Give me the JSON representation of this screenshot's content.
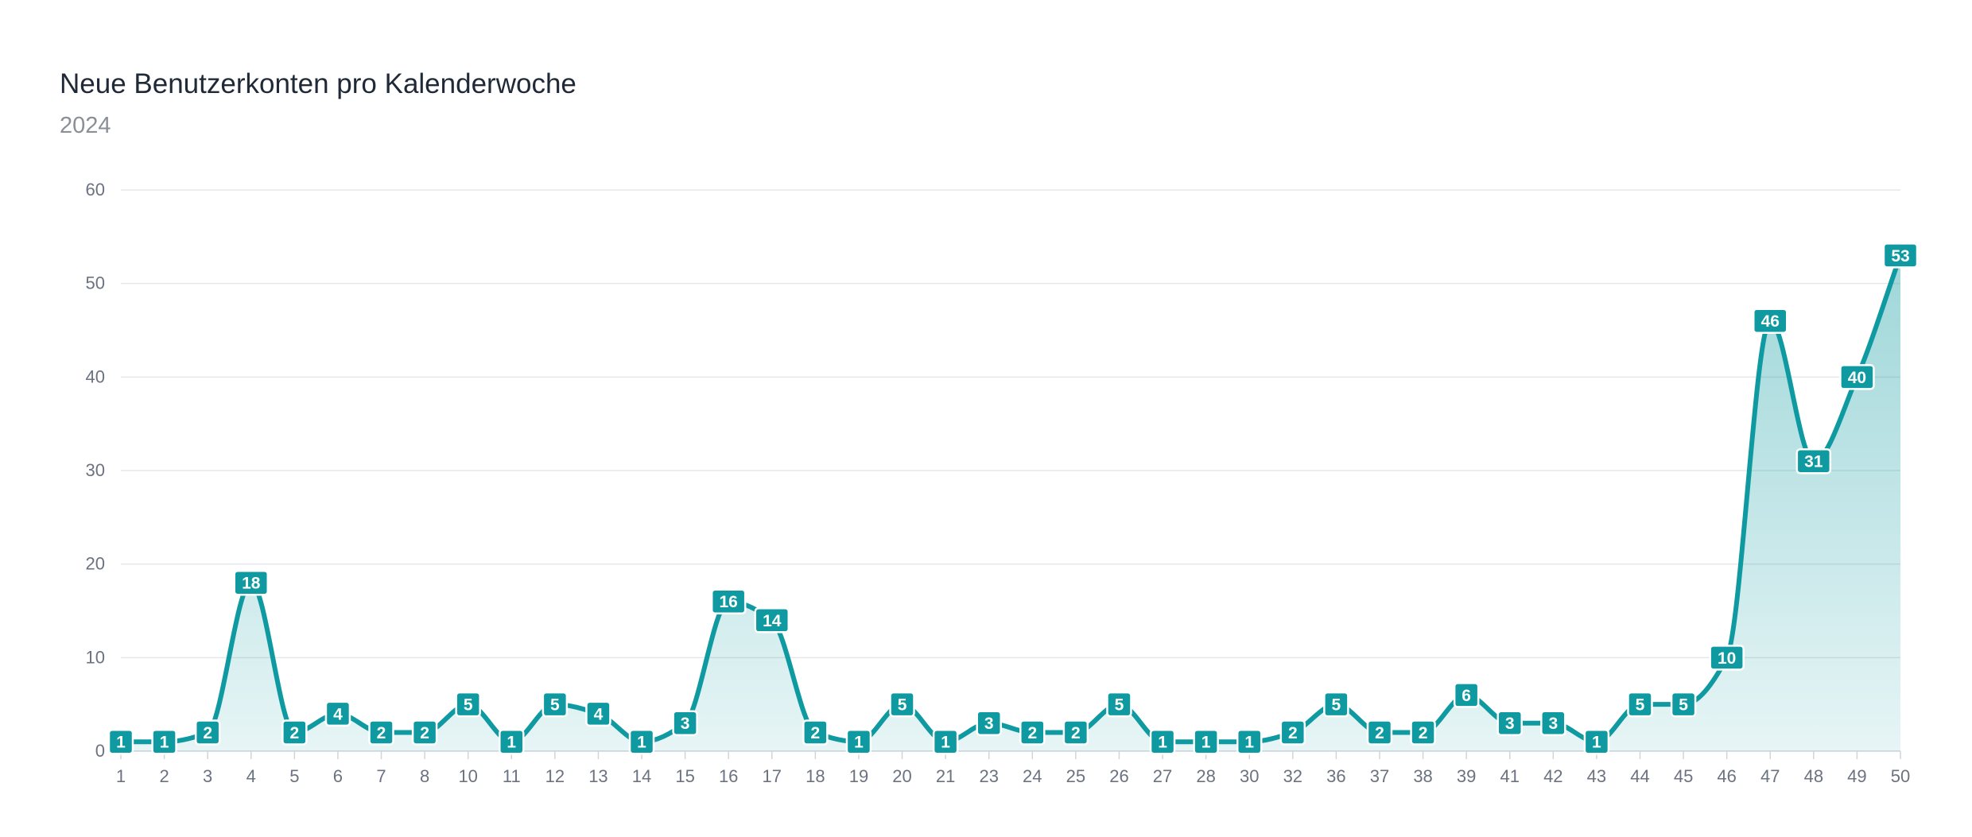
{
  "colors": {
    "line": "#0e9aa0",
    "area_top": "#0e9aa0",
    "grid": "#e5e7eb",
    "label_bg": "#0e9aa0",
    "label_text": "#ffffff"
  },
  "chart_data": {
    "type": "area",
    "title": "Neue Benutzerkonten pro Kalenderwoche",
    "subtitle": "2024",
    "xlabel": "",
    "ylabel": "",
    "ylim": [
      0,
      60
    ],
    "yticks": [
      0,
      10,
      20,
      30,
      40,
      50,
      60
    ],
    "grid": true,
    "legend": "none",
    "categories": [
      "1",
      "2",
      "3",
      "4",
      "5",
      "6",
      "7",
      "8",
      "10",
      "11",
      "12",
      "13",
      "14",
      "15",
      "16",
      "17",
      "18",
      "19",
      "20",
      "21",
      "23",
      "24",
      "25",
      "26",
      "27",
      "28",
      "30",
      "32",
      "36",
      "37",
      "38",
      "39",
      "41",
      "42",
      "43",
      "44",
      "45",
      "46",
      "47",
      "48",
      "49",
      "50"
    ],
    "series": [
      {
        "values": [
          1,
          1,
          2,
          18,
          2,
          4,
          2,
          2,
          5,
          1,
          5,
          4,
          1,
          3,
          16,
          14,
          2,
          1,
          5,
          1,
          3,
          2,
          2,
          5,
          1,
          1,
          1,
          2,
          5,
          2,
          2,
          6,
          3,
          3,
          1,
          5,
          5,
          10,
          46,
          31,
          40,
          53
        ]
      }
    ]
  }
}
